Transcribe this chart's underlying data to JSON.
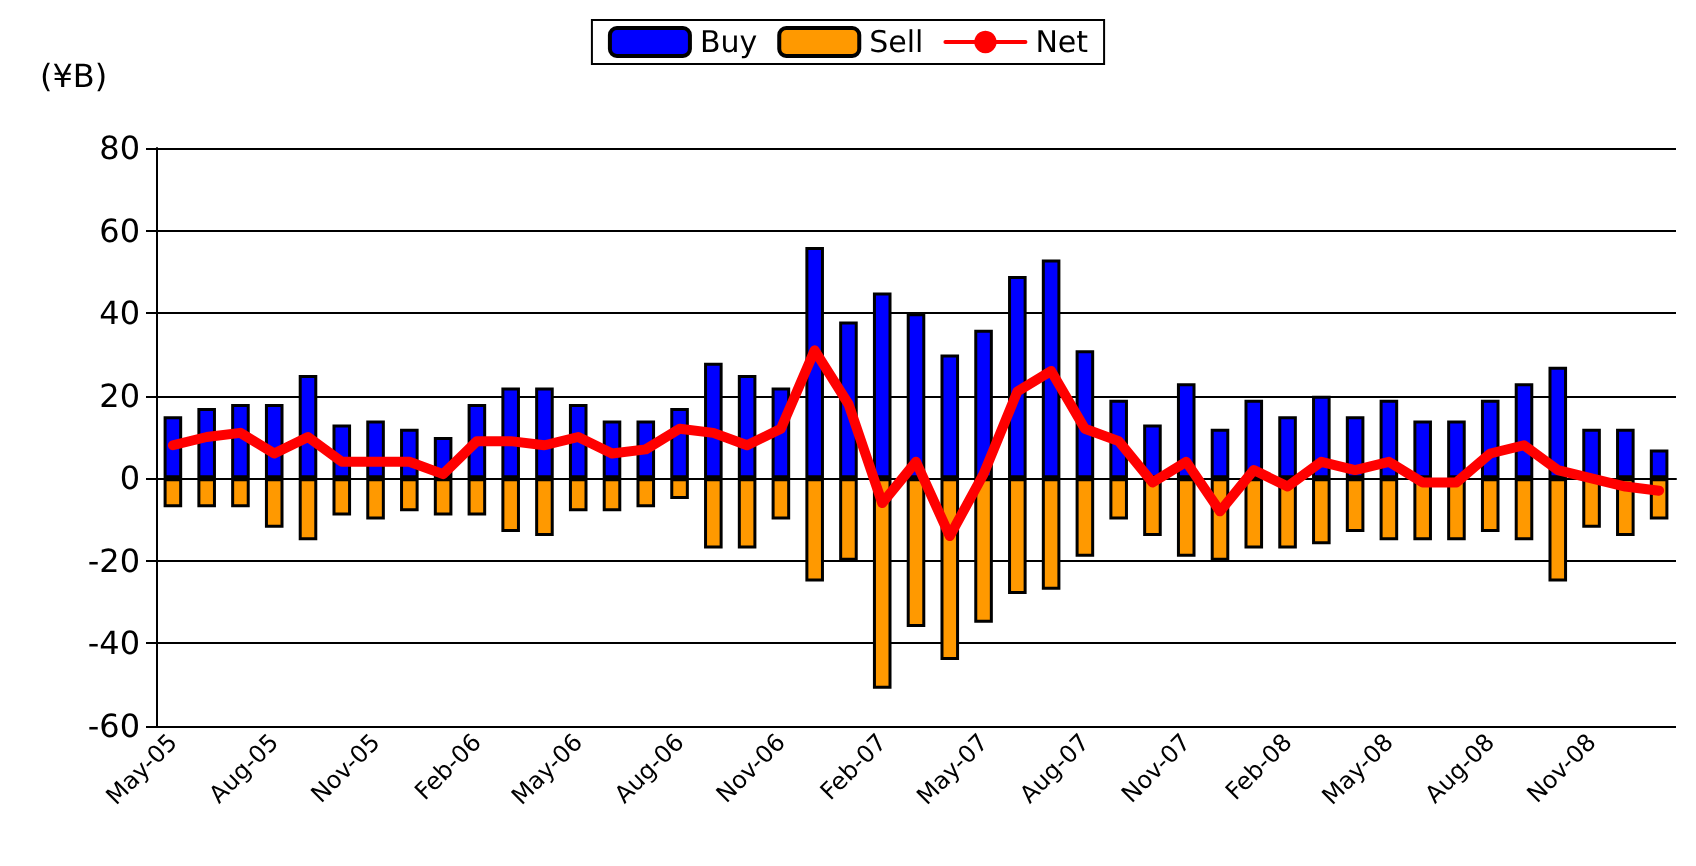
{
  "chart_data": {
    "type": "bar",
    "ylabel": "(¥B)",
    "stacked": true,
    "legend": "top",
    "grid": "y",
    "marker": "none",
    "categories": [
      "May-05",
      null,
      null,
      "Aug-05",
      null,
      null,
      "Nov-05",
      null,
      null,
      "Feb-06",
      null,
      null,
      "May-06",
      null,
      null,
      "Aug-06",
      null,
      null,
      "Nov-06",
      null,
      null,
      "Feb-07",
      null,
      null,
      "May-07",
      null,
      null,
      "Aug-07",
      null,
      null,
      "Nov-07",
      null,
      null,
      "Feb-08",
      null,
      null,
      "May-08",
      null,
      null,
      "Aug-08",
      null,
      null,
      "Nov-08",
      null,
      null
    ],
    "series": [
      {
        "name": "Buy",
        "color": "#0000ff",
        "values": [
          15,
          17,
          18,
          18,
          25,
          13,
          14,
          12,
          10,
          18,
          22,
          22,
          18,
          14,
          14,
          17,
          28,
          25,
          22,
          56,
          38,
          45,
          40,
          30,
          36,
          49,
          53,
          31,
          19,
          13,
          23,
          12,
          19,
          15,
          20,
          15,
          19,
          14,
          14,
          19,
          23,
          27,
          12,
          12,
          7
        ]
      },
      {
        "name": "Sell",
        "color": "#ff9900",
        "values": [
          -7,
          -7,
          -7,
          -12,
          -15,
          -9,
          -10,
          -8,
          -9,
          -9,
          -13,
          -14,
          -8,
          -8,
          -7,
          -5,
          -17,
          -17,
          -10,
          -25,
          -20,
          -51,
          -36,
          -44,
          -35,
          -28,
          -27,
          -19,
          -10,
          -14,
          -19,
          -20,
          -17,
          -17,
          -16,
          -13,
          -15,
          -15,
          -15,
          -13,
          -15,
          -25,
          -12,
          -14,
          -10
        ]
      },
      {
        "name": "Net",
        "type": "line",
        "color": "#ff0000",
        "values": [
          8,
          10,
          11,
          6,
          10,
          4,
          4,
          4,
          1,
          9,
          9,
          8,
          10,
          6,
          7,
          12,
          11,
          8,
          12,
          31,
          18,
          -6,
          4,
          -14,
          1,
          21,
          26,
          12,
          9,
          -1,
          4,
          -8,
          2,
          -2,
          4,
          2,
          4,
          -1,
          -1,
          6,
          8,
          2,
          0,
          -2,
          -3
        ]
      }
    ],
    "ylim": [
      -60,
      80
    ],
    "yticks": [
      -60,
      -40,
      -20,
      0,
      20,
      40,
      60,
      80
    ]
  }
}
